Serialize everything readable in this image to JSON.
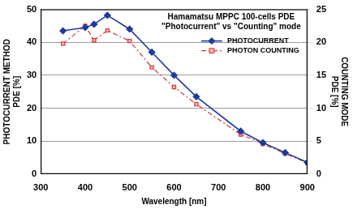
{
  "chart_data": {
    "type": "line",
    "title": [
      "Hamamatsu MPPC 100-cells PDE",
      "\"Photocurrent\" vs \"Counting\" mode"
    ],
    "x_label": "Wavelength [nm]",
    "y_label": [
      "PHOTOCURRENT METHOD",
      "PDE [%]"
    ],
    "y2_label": [
      "COUNTING MODE",
      "PDE [%]"
    ],
    "x": [
      350,
      400,
      420,
      450,
      500,
      550,
      600,
      650,
      750,
      800,
      850,
      900
    ],
    "series": [
      {
        "name": "PHOTOCURRENT",
        "color": "#1f3a9e",
        "marker": "diamond",
        "line_style": "solid",
        "values": [
          43.5,
          44.5,
          45.5,
          48.2,
          44,
          37,
          30,
          23.5,
          13,
          9.5,
          6.5,
          3.5
        ]
      },
      {
        "name": "PHOTON COUNTING",
        "color": "#d23a32",
        "marker": "square",
        "line_style": "dashdot",
        "axis": "y2",
        "values": [
          19.8,
          22.5,
          20.3,
          21.8,
          20.2,
          16.2,
          13.2,
          10.6,
          6.0,
          4.6,
          3.1,
          1.7
        ]
      }
    ],
    "xlim": [
      300,
      900
    ],
    "xticks": [
      300,
      400,
      500,
      600,
      700,
      800,
      900
    ],
    "ylim": [
      0,
      50
    ],
    "yticks": [
      0,
      10,
      20,
      30,
      40,
      50
    ],
    "y2lim": [
      0,
      25
    ],
    "y2ticks": [
      0,
      5,
      10,
      15,
      20,
      25
    ],
    "grid": true,
    "legend": "upper right"
  }
}
